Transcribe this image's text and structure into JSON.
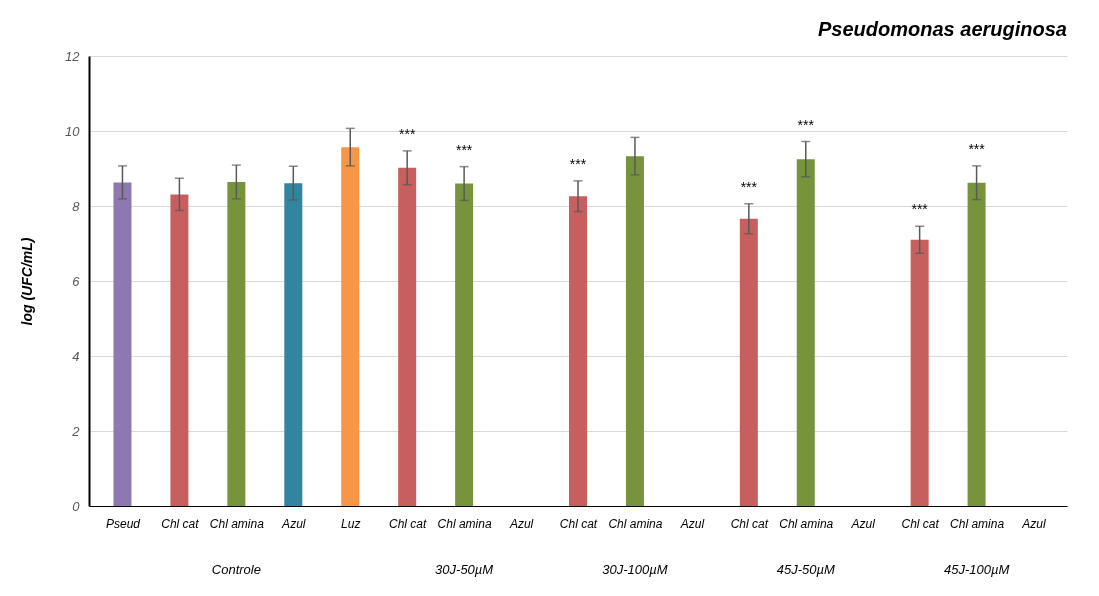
{
  "chart_data": {
    "type": "bar",
    "title": "Pseudomonas aeruginosa",
    "ylabel": "log (UFC/mL)",
    "categories": [
      "Pseud",
      "Chl cat",
      "Chl amina",
      "Azul",
      "Luz",
      "Chl cat",
      "Chl amina",
      "Azul",
      "Chl cat",
      "Chl amina",
      "Azul",
      "Chl cat",
      "Chl amina",
      "Azul",
      "Chl cat",
      "Chl amina",
      "Azul"
    ],
    "values": [
      8.63,
      8.31,
      8.64,
      8.61,
      9.57,
      9.02,
      8.6,
      null,
      8.26,
      9.33,
      null,
      7.66,
      9.25,
      null,
      7.1,
      8.62,
      null
    ],
    "errors": [
      0.44,
      0.43,
      0.45,
      0.45,
      0.5,
      0.45,
      0.45,
      null,
      0.41,
      0.5,
      null,
      0.4,
      0.47,
      null,
      0.36,
      0.45,
      null
    ],
    "colors": [
      "#8e78b0",
      "#c85f5f",
      "#77933c",
      "#31859c",
      "#f79646",
      "#c85f5f",
      "#77933c",
      null,
      "#c85f5f",
      "#77933c",
      null,
      "#c85f5f",
      "#77933c",
      null,
      "#c85f5f",
      "#77933c",
      null
    ],
    "value_labels": [
      null,
      null,
      null,
      null,
      null,
      "***",
      "***",
      null,
      "***",
      null,
      null,
      "***",
      "***",
      null,
      "***",
      "***",
      null
    ],
    "annotations": [
      "Controle",
      "30J-50µM",
      "30J-100µM",
      "45J-50µM",
      "45J-100µM"
    ],
    "ylim": [
      0,
      12
    ],
    "yticks": [
      0,
      2,
      4,
      6,
      8,
      10,
      12
    ],
    "grid": "y"
  }
}
